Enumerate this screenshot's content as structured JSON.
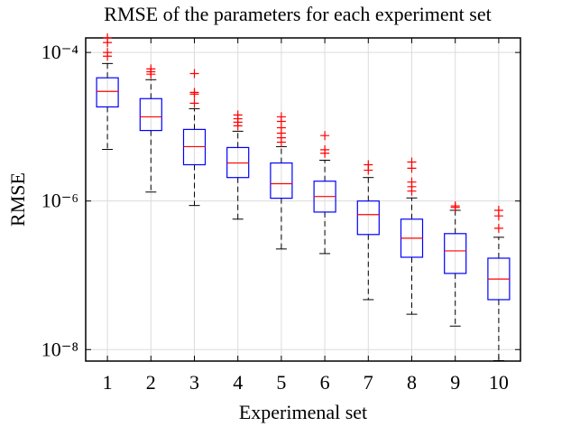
{
  "chart_data": {
    "type": "box",
    "title": "RMSE of the parameters for each experiment set",
    "xlabel": "Experimenal set",
    "ylabel": "RMSE",
    "categories": [
      "1",
      "2",
      "3",
      "4",
      "5",
      "6",
      "7",
      "8",
      "9",
      "10"
    ],
    "boxes": [
      {
        "min": 4.95e-06,
        "q1": 1.85e-05,
        "median": 2.99e-05,
        "q3": 4.56e-05,
        "max": 7.1e-05,
        "outliers": [
          0.000157,
          0.000136,
          0.0001,
          8.9e-05
        ]
      },
      {
        "min": 1.32e-06,
        "q1": 8.9e-06,
        "median": 1.36e-05,
        "q3": 2.39e-05,
        "max": 4.3e-05,
        "outliers": [
          6e-05,
          5.5e-05,
          5.1e-05
        ]
      },
      {
        "min": 8.7e-07,
        "q1": 3.08e-06,
        "median": 5.4e-06,
        "q3": 9.2e-06,
        "max": 1.75e-05,
        "outliers": [
          5.2e-05,
          2.9e-05,
          2.75e-05,
          2.07e-05
        ]
      },
      {
        "min": 5.7e-07,
        "q1": 2.07e-06,
        "median": 3.25e-06,
        "q3": 5.25e-06,
        "max": 8.7e-06,
        "outliers": [
          1.44e-05,
          1.28e-05,
          1.15e-05,
          1.03e-05
        ]
      },
      {
        "min": 2.26e-07,
        "q1": 1.09e-06,
        "median": 1.71e-06,
        "q3": 3.25e-06,
        "max": 5.4e-06,
        "outliers": [
          1.36e-05,
          1.18e-05,
          9.7e-06,
          8.2e-06,
          7.1e-06,
          6.2e-06
        ]
      },
      {
        "min": 1.96e-07,
        "q1": 7.1e-07,
        "median": 1.15e-06,
        "q3": 1.85e-06,
        "max": 3.54e-06,
        "outliers": [
          7.6e-06,
          4.9e-06,
          4.4e-06
        ]
      },
      {
        "min": 4.7e-08,
        "q1": 3.54e-07,
        "median": 6.56e-07,
        "q3": 1e-06,
        "max": 2.07e-06,
        "outliers": [
          3.08e-06,
          2.6e-06
        ]
      },
      {
        "min": 2.99e-08,
        "q1": 1.75e-07,
        "median": 3.16e-07,
        "q3": 5.7e-07,
        "max": 1.1e-06,
        "outliers": [
          3.35e-06,
          2.76e-06,
          1.8e-06,
          1.56e-06,
          1.36e-06
        ]
      },
      {
        "min": 2.07e-08,
        "q1": 1.06e-07,
        "median": 2.13e-07,
        "q3": 3.64e-07,
        "max": 7.5e-07,
        "outliers": [
          8.6e-07,
          8.2e-07
        ]
      },
      {
        "min": 7.1e-09,
        "q1": 4.7e-08,
        "median": 8.9e-08,
        "q3": 1.7e-07,
        "max": 3.25e-07,
        "outliers": [
          7.5e-07,
          6.3e-07,
          4.3e-07
        ]
      }
    ],
    "box_color": "#0000ff",
    "median_color": "#ff0000",
    "outlier_color": "#ff0000",
    "whisker_color": "#000000",
    "ylim": [
      7e-09,
      0.000157
    ],
    "yscale": "log",
    "yticks": [
      {
        "value": 1e-08,
        "label": "10⁻⁸"
      },
      {
        "value": 1e-06,
        "label": "10⁻⁶"
      },
      {
        "value": 0.0001,
        "label": "10⁻⁴"
      }
    ],
    "grid": true
  }
}
